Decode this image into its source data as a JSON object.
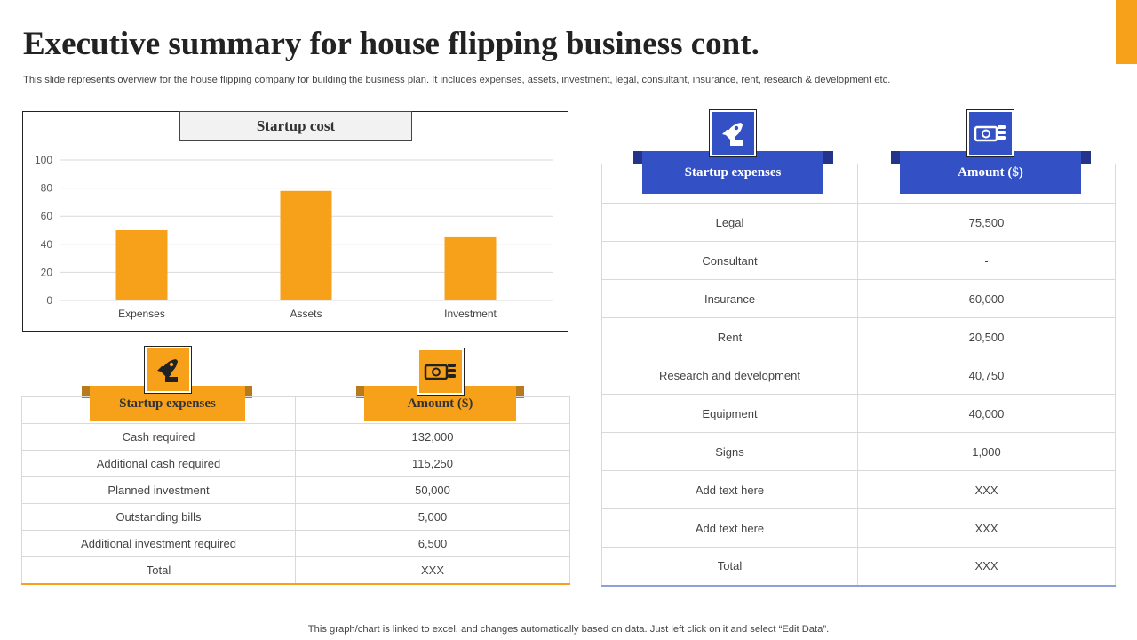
{
  "title": "Executive summary for house flipping business cont.",
  "subtitle": "This slide represents overview for the house flipping company for building the business plan. It includes expenses, assets, investment, legal, consultant, insurance, rent, research & development etc.",
  "footer": "This graph/chart is linked to excel,  and changes automatically based on data. Just left click on it and select “Edit Data”.",
  "colors": {
    "accent": "#f7a11a",
    "blue": "#3351c4",
    "blue_dark": "#24348a",
    "orange_dark": "#b77a1c"
  },
  "chart_data": {
    "type": "bar",
    "title": "Startup cost",
    "categories": [
      "Expenses",
      "Assets",
      "Investment"
    ],
    "values": [
      50,
      78,
      45
    ],
    "ylim": [
      0,
      100
    ],
    "yticks": [
      0,
      20,
      40,
      60,
      80,
      100
    ],
    "grid": true,
    "bar_color": "#f7a11a"
  },
  "table_left": {
    "icon1": "rocket-icon",
    "icon2": "money-icon",
    "header_col1": "Startup expenses",
    "header_col2": "Amount  ($)",
    "rows": [
      {
        "item": "Cash required",
        "amount": "132,000"
      },
      {
        "item": "Additional cash required",
        "amount": "115,250"
      },
      {
        "item": "Planned investment",
        "amount": "50,000"
      },
      {
        "item": "Outstanding bills",
        "amount": "5,000"
      },
      {
        "item": "Additional investment  required",
        "amount": "6,500"
      },
      {
        "item": "Total",
        "amount": "XXX"
      }
    ]
  },
  "table_right": {
    "icon1": "rocket-icon",
    "icon2": "money-icon",
    "header_col1": "Startup expenses",
    "header_col2": "Amount  ($)",
    "rows": [
      {
        "item": "Legal",
        "amount": "75,500"
      },
      {
        "item": "Consultant",
        "amount": "-"
      },
      {
        "item": "Insurance",
        "amount": "60,000"
      },
      {
        "item": "Rent",
        "amount": "20,500"
      },
      {
        "item": "Research and development",
        "amount": "40,750"
      },
      {
        "item": "Equipment",
        "amount": "40,000"
      },
      {
        "item": "Signs",
        "amount": "1,000"
      },
      {
        "item": "Add text here",
        "amount": "XXX"
      },
      {
        "item": "Add text here",
        "amount": "XXX"
      },
      {
        "item": "Total",
        "amount": "XXX"
      }
    ]
  }
}
